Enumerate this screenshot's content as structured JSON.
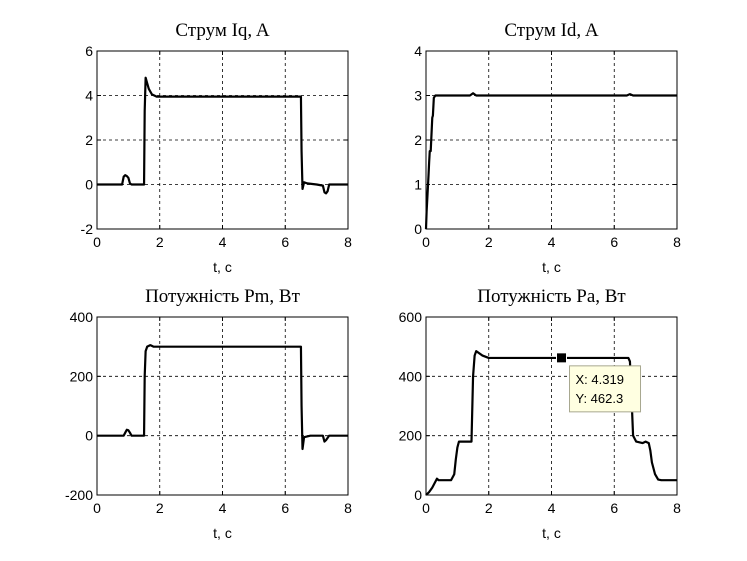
{
  "chart_data": [
    {
      "type": "line",
      "title": "Струм Iq, A",
      "xlabel": "t,  c",
      "ylabel": "",
      "xlim": [
        0,
        8
      ],
      "ylim": [
        -2,
        6
      ],
      "xticks": [
        0,
        2,
        4,
        6,
        8
      ],
      "yticks": [
        -2,
        0,
        2,
        4,
        6
      ],
      "grid": true,
      "series": [
        {
          "color": "#000000",
          "x": [
            0,
            0.8,
            0.85,
            0.9,
            0.95,
            1.0,
            1.05,
            1.1,
            1.5,
            1.52,
            1.55,
            1.6,
            1.65,
            1.75,
            1.9,
            2.0,
            6.5,
            6.52,
            6.55,
            6.6,
            6.7,
            7.0,
            7.2,
            7.25,
            7.3,
            7.35,
            7.4,
            7.5,
            8.0
          ],
          "y": [
            0,
            0,
            0.35,
            0.42,
            0.38,
            0.3,
            0.05,
            0,
            0,
            3.3,
            4.8,
            4.55,
            4.3,
            4.05,
            3.95,
            3.95,
            3.95,
            1.5,
            -0.2,
            0.1,
            0.05,
            0.0,
            -0.05,
            -0.35,
            -0.4,
            -0.3,
            0.0,
            0,
            0
          ]
        }
      ]
    },
    {
      "type": "line",
      "title": "Струм Id, A",
      "xlabel": "t,  c",
      "ylabel": "",
      "xlim": [
        0,
        8
      ],
      "ylim": [
        0,
        4
      ],
      "xticks": [
        0,
        2,
        4,
        6,
        8
      ],
      "yticks": [
        0,
        1,
        2,
        3,
        4
      ],
      "grid": true,
      "series": [
        {
          "color": "#000000",
          "x": [
            0,
            0.02,
            0.05,
            0.08,
            0.1,
            0.12,
            0.15,
            0.18,
            0.2,
            0.22,
            0.25,
            0.3,
            1.4,
            1.5,
            1.6,
            6.4,
            6.5,
            6.6,
            8.0
          ],
          "y": [
            0,
            0.4,
            0.8,
            1.2,
            1.5,
            1.75,
            1.75,
            2.2,
            2.5,
            2.55,
            2.95,
            3.0,
            3.0,
            3.05,
            3.0,
            3.0,
            3.03,
            3.0,
            3.0
          ]
        }
      ]
    },
    {
      "type": "line",
      "title": "Потужність Pm, Вт",
      "xlabel": "t,  c",
      "ylabel": "",
      "xlim": [
        0,
        8
      ],
      "ylim": [
        -200,
        400
      ],
      "xticks": [
        0,
        2,
        4,
        6,
        8
      ],
      "yticks": [
        -200,
        0,
        200,
        400
      ],
      "grid": true,
      "series": [
        {
          "color": "#000000",
          "x": [
            0,
            0.85,
            0.9,
            0.95,
            1.0,
            1.05,
            1.1,
            1.5,
            1.52,
            1.55,
            1.6,
            1.7,
            1.8,
            2.0,
            6.5,
            6.52,
            6.55,
            6.6,
            6.8,
            7.0,
            7.2,
            7.25,
            7.3,
            7.4,
            7.5,
            8.0
          ],
          "y": [
            0,
            0,
            10,
            20,
            18,
            10,
            0,
            0,
            200,
            285,
            300,
            305,
            300,
            300,
            300,
            100,
            -45,
            -5,
            0,
            0,
            0,
            -20,
            -15,
            0,
            0,
            0
          ]
        }
      ]
    },
    {
      "type": "line",
      "title": "Потужність Pa, Вт",
      "xlabel": "t,  c",
      "ylabel": "",
      "xlim": [
        0,
        8
      ],
      "ylim": [
        0,
        600
      ],
      "xticks": [
        0,
        2,
        4,
        6,
        8
      ],
      "yticks": [
        0,
        200,
        400,
        600
      ],
      "grid": true,
      "series": [
        {
          "color": "#000000",
          "x": [
            0,
            0.1,
            0.2,
            0.3,
            0.35,
            0.4,
            0.5,
            0.8,
            0.9,
            0.95,
            1.0,
            1.05,
            1.1,
            1.45,
            1.5,
            1.55,
            1.6,
            1.8,
            2.0,
            6.45,
            6.5,
            6.55,
            6.6,
            6.7,
            6.9,
            7.0,
            7.1,
            7.15,
            7.2,
            7.3,
            7.4,
            7.5,
            8.0
          ],
          "y": [
            0,
            10,
            25,
            45,
            55,
            50,
            50,
            50,
            70,
            120,
            160,
            180,
            180,
            180,
            400,
            470,
            485,
            470,
            462,
            462,
            450,
            330,
            200,
            180,
            175,
            180,
            175,
            150,
            110,
            70,
            52,
            50,
            50
          ]
        }
      ],
      "datatip": {
        "x": 4.319,
        "y": 462.3,
        "x_text": "X: 4.319",
        "y_text": "Y: 462.3"
      }
    }
  ]
}
